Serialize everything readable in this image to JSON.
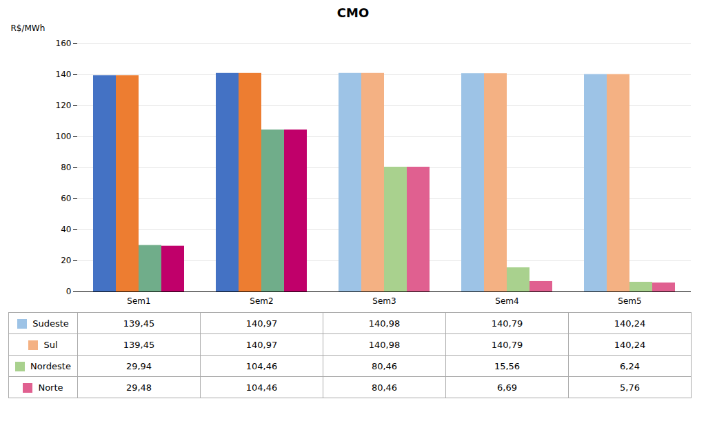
{
  "chart_data": {
    "type": "bar",
    "title": "CMO",
    "ylabel": "R$/MWh",
    "categories": [
      "Sem1",
      "Sem2",
      "Sem3",
      "Sem4",
      "Sem5"
    ],
    "series": [
      {
        "name": "Sudeste",
        "color": "#9DC3E6",
        "colors": [
          "#4472C4",
          "#4472C4",
          "#9DC3E6",
          "#9DC3E6",
          "#9DC3E6"
        ],
        "values": [
          139.45,
          140.97,
          140.98,
          140.79,
          140.24
        ],
        "value_labels": [
          "139,45",
          "140,97",
          "140,98",
          "140,79",
          "140,24"
        ]
      },
      {
        "name": "Sul",
        "color": "#F4B183",
        "colors": [
          "#ED7D31",
          "#ED7D31",
          "#F4B183",
          "#F4B183",
          "#F4B183"
        ],
        "values": [
          139.45,
          140.97,
          140.98,
          140.79,
          140.24
        ],
        "value_labels": [
          "139,45",
          "140,97",
          "140,98",
          "140,79",
          "140,24"
        ]
      },
      {
        "name": "Nordeste",
        "color": "#A9D18E",
        "colors": [
          "#70AD8A",
          "#70AD8A",
          "#A9D18E",
          "#A9D18E",
          "#A9D18E"
        ],
        "values": [
          29.94,
          104.46,
          80.46,
          15.56,
          6.24
        ],
        "value_labels": [
          "29,94",
          "104,46",
          "80,46",
          "15,56",
          "6,24"
        ]
      },
      {
        "name": "Norte",
        "color": "#E06090",
        "colors": [
          "#C0006A",
          "#C0006A",
          "#E06090",
          "#E06090",
          "#E06090"
        ],
        "values": [
          29.48,
          104.46,
          80.46,
          6.69,
          5.76
        ],
        "value_labels": [
          "29,48",
          "104,46",
          "80,46",
          "6,69",
          "5,76"
        ]
      }
    ],
    "ylim": [
      0,
      160
    ],
    "yticks": [
      0,
      20,
      40,
      60,
      80,
      100,
      120,
      140,
      160
    ],
    "grid": true
  }
}
